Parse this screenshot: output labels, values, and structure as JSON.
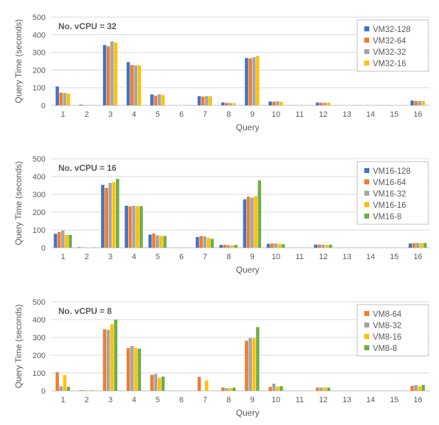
{
  "colors": {
    "128": "#4472C4",
    "64": "#ED7D31",
    "32": "#A5A5A5",
    "16": "#FFC000",
    "8": "#70AD47",
    "grid": "#d9d9d9",
    "axis": "#bfbfbf",
    "text": "#595959"
  },
  "chart_data": [
    {
      "type": "bar",
      "title": "No. vCPU = 32",
      "xlabel": "Query",
      "ylabel": "Query Time (seconds)",
      "ylim": [
        0,
        500
      ],
      "yticks": [
        "0",
        "100",
        "200",
        "300",
        "400",
        "500"
      ],
      "grid": true,
      "legend_position": "top-right",
      "categories": [
        "1",
        "2",
        "3",
        "4",
        "5",
        "6",
        "7",
        "8",
        "9",
        "10",
        "11",
        "12",
        "13",
        "14",
        "15",
        "16"
      ],
      "series": [
        {
          "name": "VM32-128",
          "color_key": "128",
          "values": [
            107,
            4,
            342,
            245,
            62,
            0,
            52,
            17,
            268,
            22,
            0,
            16,
            0,
            0,
            0,
            27
          ]
        },
        {
          "name": "VM32-64",
          "color_key": "64",
          "values": [
            72,
            1,
            334,
            228,
            55,
            0,
            50,
            14,
            266,
            21,
            0,
            15,
            0,
            0,
            0,
            24
          ]
        },
        {
          "name": "VM32-32",
          "color_key": "32",
          "values": [
            70,
            1,
            362,
            226,
            63,
            0,
            52,
            13,
            273,
            23,
            0,
            15,
            0,
            0,
            0,
            25
          ]
        },
        {
          "name": "VM32-16",
          "color_key": "16",
          "values": [
            67,
            1,
            356,
            226,
            58,
            0,
            52,
            12,
            279,
            21,
            0,
            16,
            0,
            0,
            0,
            24
          ]
        }
      ]
    },
    {
      "type": "bar",
      "title": "No. vCPU = 16",
      "xlabel": "Query",
      "ylabel": "Query Time (seconds)",
      "ylim": [
        0,
        500
      ],
      "yticks": [
        "0",
        "100",
        "200",
        "300",
        "400",
        "500"
      ],
      "grid": true,
      "legend_position": "top-right",
      "categories": [
        "1",
        "2",
        "3",
        "4",
        "5",
        "6",
        "7",
        "8",
        "9",
        "10",
        "11",
        "12",
        "13",
        "14",
        "15",
        "16"
      ],
      "series": [
        {
          "name": "VM16-128",
          "color_key": "128",
          "values": [
            78,
            3,
            353,
            236,
            74,
            0,
            60,
            16,
            272,
            22,
            0,
            18,
            0,
            0,
            0,
            24
          ]
        },
        {
          "name": "VM16-64",
          "color_key": "64",
          "values": [
            88,
            2,
            336,
            232,
            80,
            0,
            66,
            17,
            287,
            24,
            0,
            17,
            0,
            0,
            0,
            26
          ]
        },
        {
          "name": "VM16-32",
          "color_key": "32",
          "values": [
            97,
            2,
            364,
            236,
            70,
            0,
            64,
            15,
            281,
            24,
            0,
            17,
            0,
            0,
            0,
            27
          ]
        },
        {
          "name": "VM16-16",
          "color_key": "16",
          "values": [
            72,
            2,
            368,
            233,
            66,
            0,
            56,
            13,
            290,
            22,
            0,
            16,
            0,
            0,
            0,
            26
          ]
        },
        {
          "name": "VM16-8",
          "color_key": "8",
          "values": [
            72,
            2,
            387,
            234,
            66,
            0,
            50,
            16,
            378,
            20,
            0,
            17,
            0,
            0,
            0,
            27
          ]
        }
      ]
    },
    {
      "type": "bar",
      "title": "No. vCPU = 8",
      "xlabel": "Query",
      "ylabel": "Query Time (seconds)",
      "ylim": [
        0,
        500
      ],
      "yticks": [
        "0",
        "100",
        "200",
        "300",
        "400",
        "500"
      ],
      "grid": true,
      "legend_position": "top-right",
      "categories": [
        "1",
        "2",
        "3",
        "4",
        "5",
        "6",
        "7",
        "8",
        "9",
        "10",
        "11",
        "12",
        "13",
        "14",
        "15",
        "16"
      ],
      "series": [
        {
          "name": "VM8-64",
          "color_key": "64",
          "values": [
            105,
            4,
            346,
            240,
            90,
            0,
            78,
            19,
            281,
            22,
            0,
            18,
            0,
            0,
            0,
            28
          ]
        },
        {
          "name": "VM8-32",
          "color_key": "32",
          "values": [
            25,
            3,
            343,
            252,
            95,
            0,
            0,
            15,
            297,
            40,
            0,
            18,
            0,
            0,
            0,
            32
          ]
        },
        {
          "name": "VM8-16",
          "color_key": "16",
          "values": [
            88,
            3,
            375,
            241,
            72,
            0,
            58,
            16,
            296,
            24,
            0,
            19,
            0,
            0,
            0,
            26
          ]
        },
        {
          "name": "VM8-8",
          "color_key": "8",
          "values": [
            23,
            3,
            400,
            237,
            80,
            0,
            0,
            18,
            358,
            26,
            0,
            18,
            0,
            0,
            0,
            33
          ]
        }
      ]
    }
  ]
}
